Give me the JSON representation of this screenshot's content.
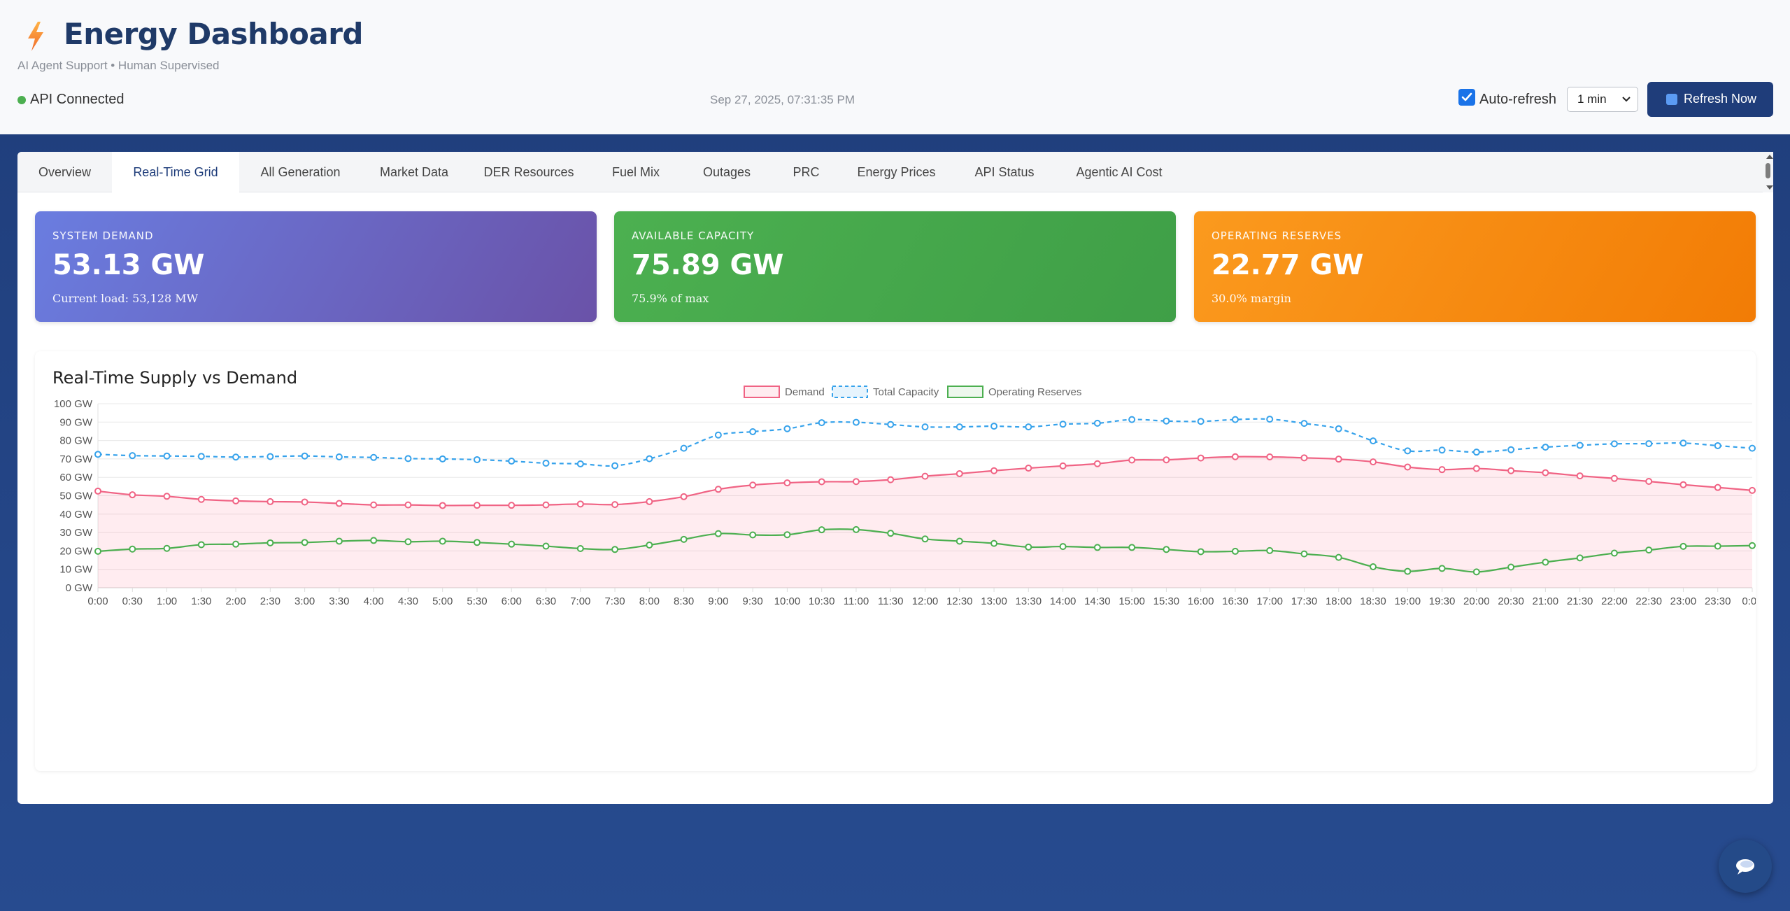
{
  "header": {
    "title": "Energy Dashboard",
    "subtitle": "AI Agent Support • Human Supervised",
    "status": "API Connected",
    "timestamp": "Sep 27, 2025, 07:31:35 PM",
    "auto_refresh_label": "Auto-refresh",
    "auto_refresh_checked": true,
    "interval_value": "1 min",
    "refresh_button": "Refresh Now",
    "icon": "lightning-bolt-icon"
  },
  "tabs": [
    {
      "label": "Overview",
      "active": false
    },
    {
      "label": "Real-Time Grid",
      "active": true
    },
    {
      "label": "All Generation",
      "active": false
    },
    {
      "label": "Market Data",
      "active": false
    },
    {
      "label": "DER Resources",
      "active": false
    },
    {
      "label": "Fuel Mix",
      "active": false
    },
    {
      "label": "Outages",
      "active": false
    },
    {
      "label": "PRC",
      "active": false
    },
    {
      "label": "Energy Prices",
      "active": false
    },
    {
      "label": "API Status",
      "active": false
    },
    {
      "label": "Agentic AI Cost",
      "active": false
    }
  ],
  "cards": [
    {
      "label": "SYSTEM DEMAND",
      "value": "53.13 GW",
      "sub": "Current load: 53,128 MW"
    },
    {
      "label": "AVAILABLE CAPACITY",
      "value": "75.89 GW",
      "sub": "75.9% of max"
    },
    {
      "label": "OPERATING RESERVES",
      "value": "22.77 GW",
      "sub": "30.0% margin"
    }
  ],
  "colors": {
    "demand": "#f06384",
    "capacity": "#36a2eb",
    "reserves": "#4caf50",
    "demand_fill": "rgba(255,99,132,0.12)"
  },
  "chart_data": {
    "type": "line",
    "title": "Real-Time Supply vs Demand",
    "y_ticks": [
      "0 GW",
      "10 GW",
      "20 GW",
      "30 GW",
      "40 GW",
      "50 GW",
      "60 GW",
      "70 GW",
      "80 GW",
      "90 GW",
      "100 GW"
    ],
    "ylim": [
      0,
      100
    ],
    "legend_position": "top-center",
    "grid": true,
    "x": [
      "0:00",
      "0:30",
      "1:00",
      "1:30",
      "2:00",
      "2:30",
      "3:00",
      "3:30",
      "4:00",
      "4:30",
      "5:00",
      "5:30",
      "6:00",
      "6:30",
      "7:00",
      "7:30",
      "8:00",
      "8:30",
      "9:00",
      "9:30",
      "10:00",
      "10:30",
      "11:00",
      "11:30",
      "12:00",
      "12:30",
      "13:00",
      "13:30",
      "14:00",
      "14:30",
      "15:00",
      "15:30",
      "16:00",
      "16:30",
      "17:00",
      "17:30",
      "18:00",
      "18:30",
      "19:00",
      "19:30",
      "20:00",
      "20:30",
      "21:00",
      "21:30",
      "22:00",
      "22:30",
      "23:00",
      "23:30",
      "0:00"
    ],
    "series": [
      {
        "name": "Demand",
        "style": "solid-filled",
        "values": [
          52.5,
          50.5,
          49.7,
          48.0,
          47.2,
          46.8,
          46.6,
          45.8,
          45.0,
          45.0,
          44.7,
          44.8,
          44.8,
          45.0,
          45.5,
          45.2,
          46.8,
          49.5,
          53.5,
          55.8,
          57.0,
          57.6,
          57.7,
          58.7,
          60.6,
          62.0,
          63.6,
          65.0,
          66.2,
          67.4,
          69.4,
          69.5,
          70.5,
          71.2,
          71.1,
          70.6,
          69.9,
          68.4,
          65.6,
          64.2,
          64.8,
          63.6,
          62.5,
          60.8,
          59.4,
          57.8,
          56.0,
          54.5,
          52.9
        ]
      },
      {
        "name": "Total Capacity",
        "style": "dashed",
        "values": [
          72.5,
          71.8,
          71.6,
          71.4,
          71.0,
          71.3,
          71.6,
          71.1,
          70.8,
          70.2,
          70.0,
          69.6,
          68.8,
          67.7,
          67.3,
          66.3,
          70.1,
          75.8,
          83.0,
          84.8,
          86.4,
          89.7,
          89.9,
          88.7,
          87.4,
          87.4,
          87.8,
          87.4,
          88.9,
          89.4,
          91.4,
          90.6,
          90.4,
          91.4,
          91.6,
          89.3,
          86.4,
          79.8,
          74.4,
          74.8,
          73.7,
          75.0,
          76.4,
          77.4,
          78.2,
          78.3,
          78.6,
          77.2,
          75.8
        ]
      },
      {
        "name": "Operating Reserves",
        "style": "solid",
        "values": [
          19.8,
          21.0,
          21.4,
          23.4,
          23.7,
          24.4,
          24.6,
          25.3,
          25.7,
          25.0,
          25.3,
          24.6,
          23.7,
          22.6,
          21.3,
          20.8,
          23.2,
          26.3,
          29.4,
          28.7,
          28.8,
          31.5,
          31.6,
          29.6,
          26.5,
          25.3,
          24.1,
          22.1,
          22.4,
          21.9,
          21.9,
          20.8,
          19.6,
          19.8,
          20.2,
          18.4,
          16.5,
          11.4,
          8.9,
          10.5,
          8.6,
          11.2,
          13.9,
          16.2,
          18.8,
          20.5,
          22.5,
          22.6,
          22.9
        ]
      }
    ]
  },
  "chat_icon": "chat-bubble-icon"
}
